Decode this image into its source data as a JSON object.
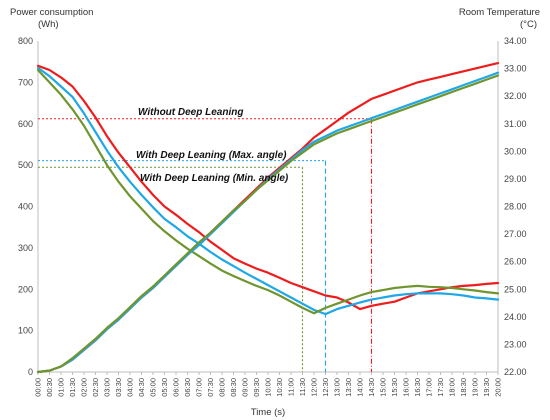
{
  "chart_data": {
    "type": "line",
    "xlabel": "Time (s)",
    "y_left_label": [
      "Power consumption",
      "(Wh)"
    ],
    "y_right_label": [
      "Room Temperature",
      "(°C)"
    ],
    "x_ticks": [
      "00:00",
      "00:30",
      "01:00",
      "01:30",
      "02:00",
      "02:30",
      "03:00",
      "03:30",
      "04:00",
      "04:30",
      "05:00",
      "05:30",
      "06:00",
      "06:30",
      "07:00",
      "07:30",
      "08:00",
      "08:30",
      "09:00",
      "09:30",
      "10:00",
      "10:30",
      "11:00",
      "11:30",
      "12:00",
      "12:30",
      "13:00",
      "13:30",
      "14:00",
      "14:30",
      "15:00",
      "15:30",
      "16:00",
      "16:30",
      "17:00",
      "17:30",
      "18:00",
      "18:30",
      "19:00",
      "19:30",
      "20:00"
    ],
    "y_left_ticks": [
      0,
      100,
      200,
      300,
      400,
      500,
      600,
      700,
      800
    ],
    "y_left_lim": [
      0,
      800
    ],
    "y_right_ticks": [
      "22.00",
      "23.00",
      "24.00",
      "25.00",
      "26.00",
      "27.00",
      "28.00",
      "29.00",
      "30.00",
      "31.00",
      "32.00",
      "33.00",
      "34.00"
    ],
    "y_right_lim": [
      22,
      34
    ],
    "x_range_minutes": [
      0,
      1200
    ],
    "grid": false,
    "colors": {
      "red": "#ee1c1c",
      "blue": "#1fa7e6",
      "green": "#6f952e"
    },
    "annotations": [
      {
        "text": "Without Deep Leaning",
        "color": "#ee1c1c",
        "level_wh": 612,
        "event_time": "14:30"
      },
      {
        "text": "With Deep Leaning (Max. angle)",
        "color": "#1fa7e6",
        "level_wh": 511,
        "event_time": "12:30"
      },
      {
        "text": "With Deep Leaning (Min. angle)",
        "color": "#6f952e",
        "level_wh": 495,
        "event_time": "11:30"
      }
    ],
    "series": [
      {
        "color": "#ee1c1c",
        "axis": "left",
        "x_minutes": [
          0,
          30,
          60,
          90,
          120,
          150,
          180,
          210,
          240,
          270,
          300,
          330,
          360,
          390,
          420,
          450,
          480,
          510,
          540,
          570,
          600,
          630,
          660,
          690,
          720,
          750,
          780,
          810,
          840,
          870,
          900,
          930,
          960,
          990,
          1020,
          1050,
          1080,
          1110,
          1140,
          1170,
          1200
        ],
        "values": [
          740,
          730,
          712,
          690,
          655,
          615,
          570,
          530,
          495,
          460,
          428,
          400,
          380,
          358,
          338,
          315,
          295,
          275,
          262,
          250,
          240,
          228,
          215,
          205,
          195,
          185,
          180,
          168,
          152,
          160,
          165,
          170,
          180,
          190,
          195,
          200,
          205,
          208,
          210,
          213,
          215
        ]
      },
      {
        "color": "#1fa7e6",
        "axis": "left",
        "x_minutes": [
          0,
          30,
          60,
          90,
          120,
          150,
          180,
          210,
          240,
          270,
          300,
          330,
          360,
          390,
          420,
          450,
          480,
          510,
          540,
          570,
          600,
          630,
          660,
          690,
          720,
          750,
          780,
          810,
          840,
          870,
          900,
          930,
          960,
          990,
          1020,
          1050,
          1080,
          1110,
          1140,
          1170,
          1200
        ],
        "values": [
          735,
          715,
          690,
          665,
          625,
          580,
          535,
          495,
          460,
          428,
          398,
          370,
          350,
          328,
          310,
          290,
          272,
          256,
          240,
          225,
          210,
          195,
          180,
          165,
          150,
          140,
          152,
          160,
          168,
          175,
          180,
          185,
          188,
          190,
          190,
          190,
          188,
          185,
          180,
          178,
          175
        ]
      },
      {
        "color": "#6f952e",
        "axis": "left",
        "x_minutes": [
          0,
          30,
          60,
          90,
          120,
          150,
          180,
          210,
          240,
          270,
          300,
          330,
          360,
          390,
          420,
          450,
          480,
          510,
          540,
          570,
          600,
          630,
          660,
          690,
          720,
          750,
          780,
          810,
          840,
          870,
          900,
          930,
          960,
          990,
          1020,
          1050,
          1080,
          1110,
          1140,
          1170,
          1200
        ],
        "values": [
          730,
          700,
          670,
          635,
          595,
          548,
          500,
          460,
          425,
          395,
          365,
          340,
          318,
          298,
          280,
          262,
          245,
          232,
          220,
          208,
          198,
          185,
          170,
          155,
          142,
          155,
          165,
          175,
          185,
          193,
          198,
          203,
          206,
          208,
          206,
          205,
          203,
          200,
          197,
          193,
          190
        ]
      },
      {
        "color": "#ee1c1c",
        "axis": "right",
        "x_minutes": [
          0,
          30,
          60,
          90,
          120,
          150,
          180,
          210,
          240,
          270,
          300,
          330,
          360,
          390,
          420,
          450,
          480,
          510,
          540,
          570,
          600,
          630,
          660,
          690,
          720,
          750,
          780,
          810,
          840,
          870,
          900,
          930,
          960,
          990,
          1020,
          1050,
          1080,
          1110,
          1140,
          1170,
          1200
        ],
        "values": [
          22.0,
          22.05,
          22.2,
          22.45,
          22.8,
          23.15,
          23.55,
          23.9,
          24.3,
          24.7,
          25.05,
          25.45,
          25.85,
          26.25,
          26.65,
          27.05,
          27.45,
          27.85,
          28.25,
          28.65,
          29.05,
          29.4,
          29.75,
          30.1,
          30.5,
          30.8,
          31.1,
          31.4,
          31.65,
          31.9,
          32.05,
          32.2,
          32.35,
          32.5,
          32.6,
          32.7,
          32.8,
          32.9,
          33.0,
          33.1,
          33.2
        ]
      },
      {
        "color": "#1fa7e6",
        "axis": "right",
        "x_minutes": [
          0,
          30,
          60,
          90,
          120,
          150,
          180,
          210,
          240,
          270,
          300,
          330,
          360,
          390,
          420,
          450,
          480,
          510,
          540,
          570,
          600,
          630,
          660,
          690,
          720,
          750,
          780,
          810,
          840,
          870,
          900,
          930,
          960,
          990,
          1020,
          1050,
          1080,
          1110,
          1140,
          1170,
          1200
        ],
        "values": [
          22.0,
          22.05,
          22.2,
          22.45,
          22.8,
          23.15,
          23.55,
          23.9,
          24.3,
          24.7,
          25.05,
          25.45,
          25.85,
          26.25,
          26.6,
          27.0,
          27.4,
          27.8,
          28.2,
          28.6,
          29.0,
          29.35,
          29.7,
          30.05,
          30.35,
          30.55,
          30.75,
          30.9,
          31.05,
          31.2,
          31.35,
          31.5,
          31.65,
          31.8,
          31.95,
          32.1,
          32.25,
          32.4,
          32.55,
          32.7,
          32.85
        ]
      },
      {
        "color": "#6f952e",
        "axis": "right",
        "x_minutes": [
          0,
          30,
          60,
          90,
          120,
          150,
          180,
          210,
          240,
          270,
          300,
          330,
          360,
          390,
          420,
          450,
          480,
          510,
          540,
          570,
          600,
          630,
          660,
          690,
          720,
          750,
          780,
          810,
          840,
          870,
          900,
          930,
          960,
          990,
          1020,
          1050,
          1080,
          1110,
          1140,
          1170,
          1200
        ],
        "values": [
          22.0,
          22.05,
          22.2,
          22.5,
          22.85,
          23.2,
          23.6,
          23.95,
          24.35,
          24.75,
          25.1,
          25.5,
          25.9,
          26.3,
          26.7,
          27.05,
          27.45,
          27.85,
          28.2,
          28.6,
          28.95,
          29.3,
          29.65,
          29.95,
          30.25,
          30.45,
          30.65,
          30.8,
          30.95,
          31.1,
          31.25,
          31.4,
          31.55,
          31.7,
          31.85,
          32.0,
          32.15,
          32.3,
          32.45,
          32.6,
          32.75
        ]
      }
    ]
  }
}
